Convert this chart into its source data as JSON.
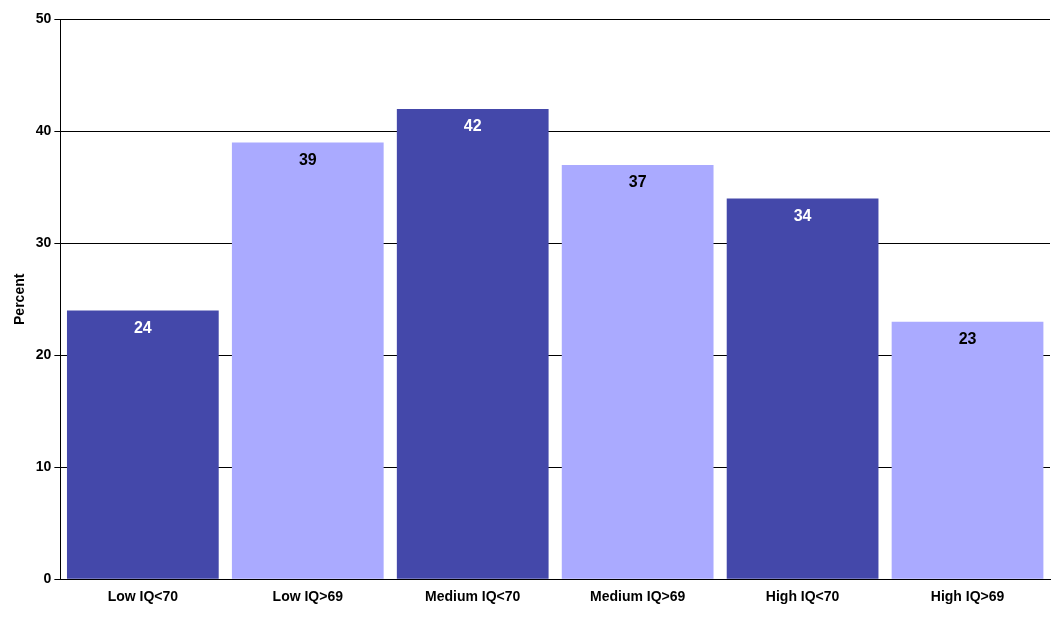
{
  "chart_data": {
    "type": "bar",
    "ylabel": "Percent",
    "categories": [
      "Low IQ<70",
      "Low IQ>69",
      "Medium IQ<70",
      "Medium IQ>69",
      "High IQ<70",
      "High IQ>69"
    ],
    "values": [
      24,
      39,
      42,
      37,
      34,
      23
    ],
    "colors": [
      "#4448aa",
      "#aaaaff",
      "#4448aa",
      "#aaaaff",
      "#4448aa",
      "#aaaaff"
    ],
    "ylim": [
      0,
      50
    ],
    "yticks": [
      0,
      10,
      20,
      30,
      40,
      50
    ],
    "grid": "y",
    "data_labels": true,
    "legend": false
  }
}
